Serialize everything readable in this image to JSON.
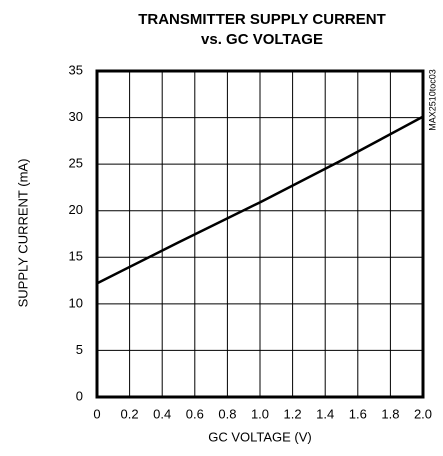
{
  "chart_data": {
    "type": "line",
    "title": [
      "TRANSMITTER SUPPLY CURRENT",
      "vs. GC VOLTAGE"
    ],
    "annotation": "MAX2510toc03",
    "xlabel": "GC VOLTAGE (V)",
    "ylabel": "SUPPLY CURRENT (mA)",
    "x": [
      0,
      0.5,
      1.0,
      1.5,
      2.0
    ],
    "series": [
      {
        "name": "supply current",
        "color": "#000000",
        "values": [
          12.2,
          16.6,
          20.9,
          25.4,
          30.1
        ]
      }
    ],
    "xlim": [
      0,
      2.0
    ],
    "xticks": [
      0,
      0.2,
      0.4,
      0.6,
      0.8,
      {
        "value": 1.0,
        "label": "1.0"
      },
      1.2,
      1.4,
      1.6,
      1.8,
      {
        "value": 2.0,
        "label": "2.0"
      }
    ],
    "ylim": [
      0,
      35
    ],
    "yticks": [
      0,
      5,
      10,
      15,
      20,
      25,
      30,
      35
    ],
    "grid": true
  }
}
